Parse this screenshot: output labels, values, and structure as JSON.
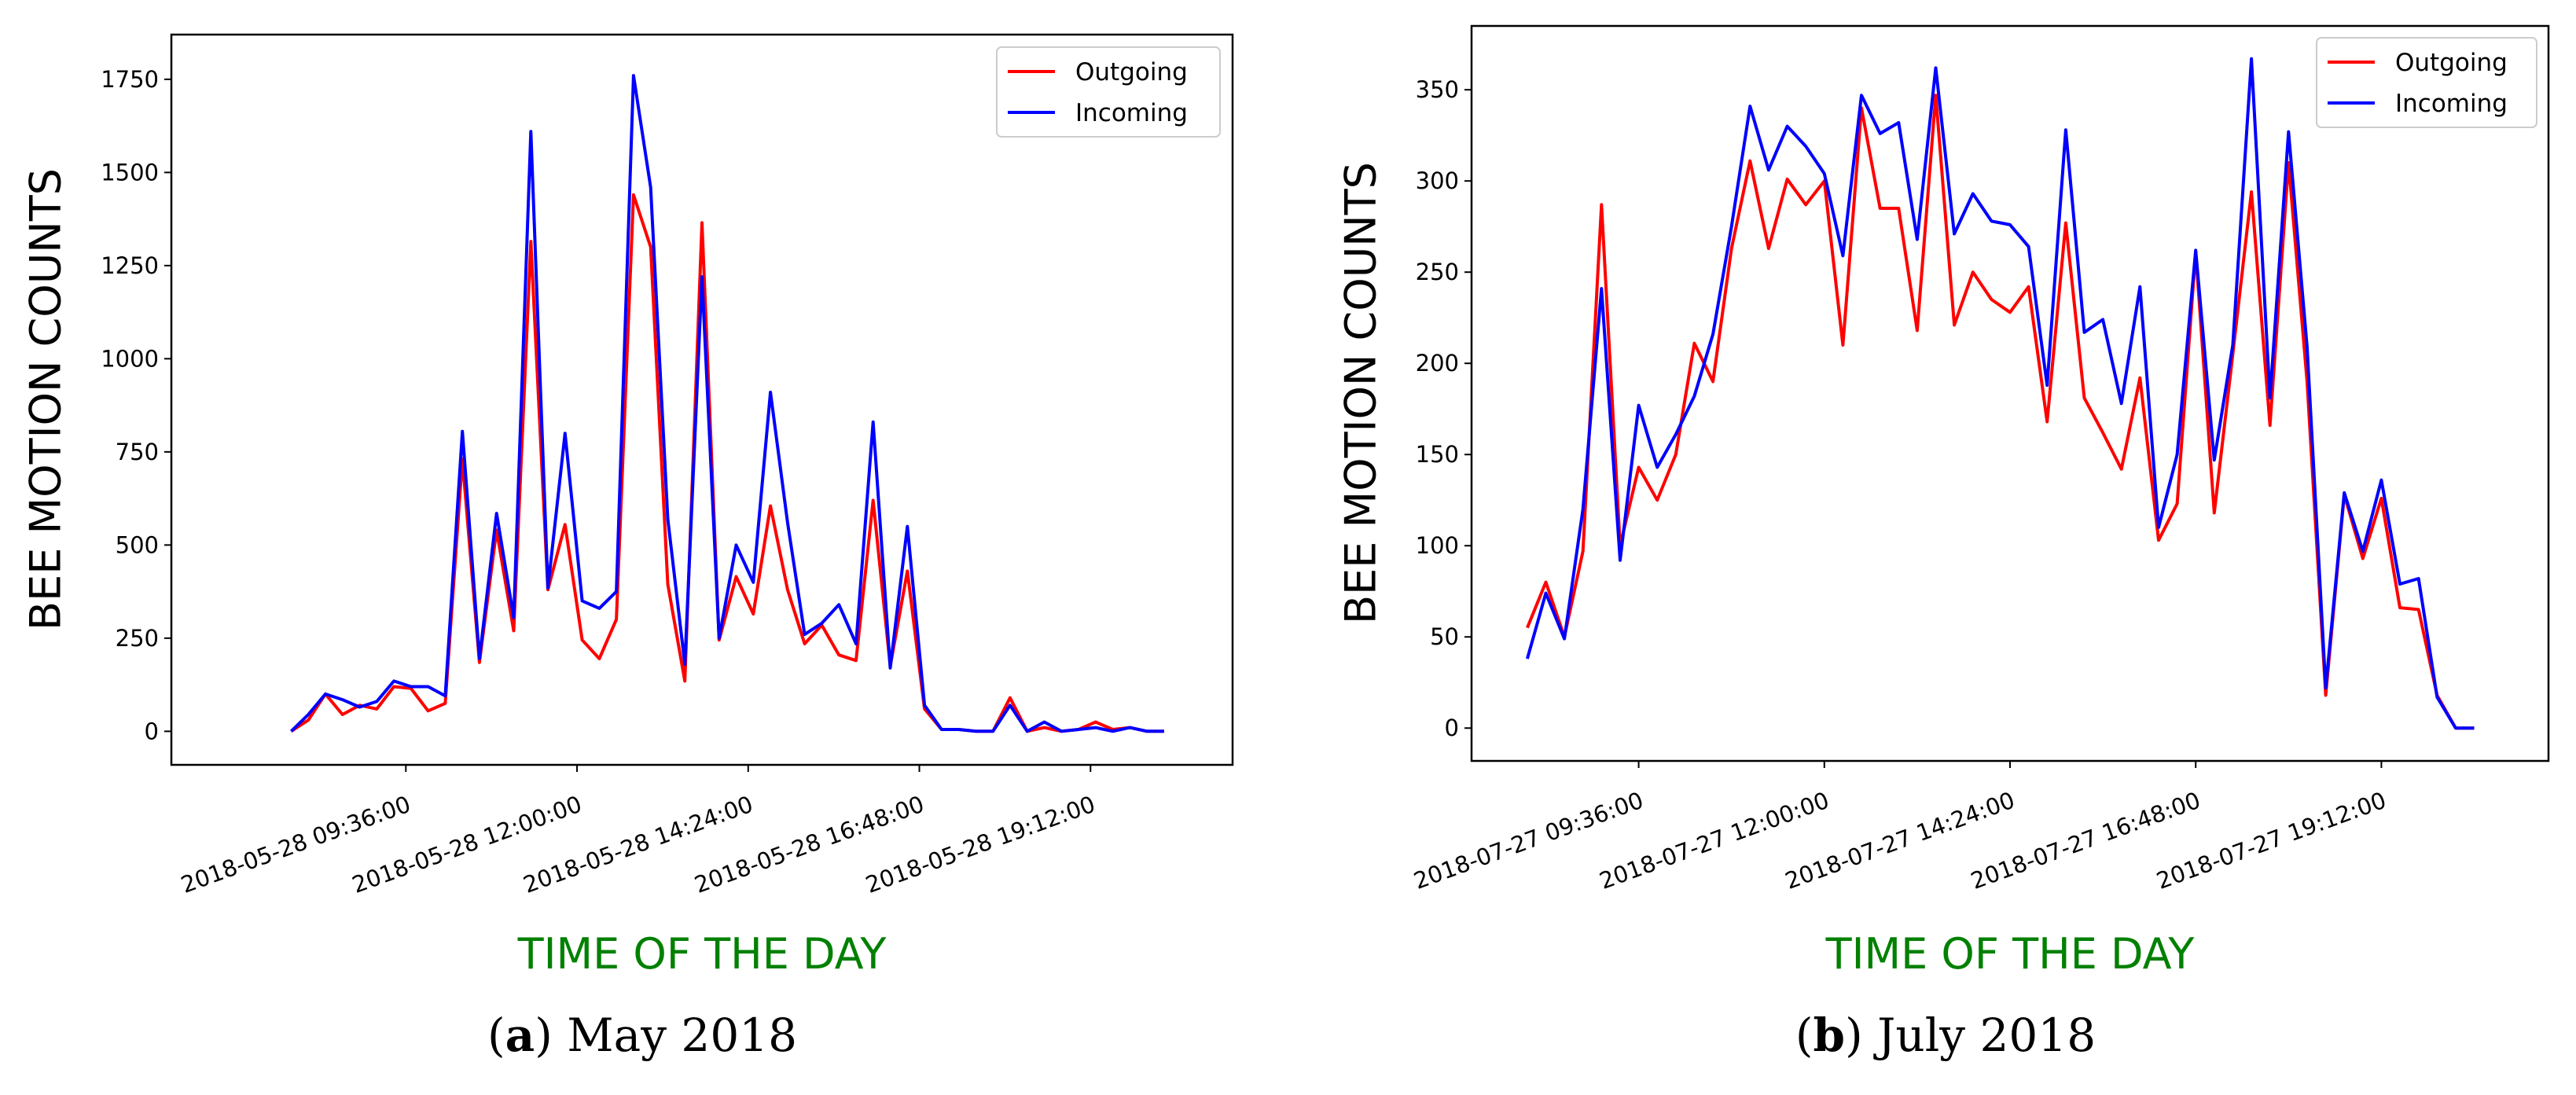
{
  "chart_data": [
    {
      "id": "a",
      "type": "line",
      "caption_letter": "a",
      "caption_text": "May 2018",
      "title": "",
      "xlabel": "TIME OF THE DAY",
      "ylabel": "BEE MOTION COUNTS",
      "ylim": [
        -90,
        1870
      ],
      "yticks": [
        0,
        250,
        500,
        750,
        1000,
        1250,
        1500,
        1750
      ],
      "xlim": [
        -7,
        55
      ],
      "xticks": [
        6.7,
        16.7,
        26.7,
        36.7,
        46.7
      ],
      "xtick_labels": [
        "2018-05-28 09:36:00",
        "2018-05-28 12:00:00",
        "2018-05-28 14:24:00",
        "2018-05-28 16:48:00",
        "2018-05-28 19:12:00"
      ],
      "legend": [
        "Outgoing",
        "Incoming"
      ],
      "legend_position": "top-right",
      "colors": {
        "Outgoing": "#ff0000",
        "Incoming": "#0000ff"
      },
      "series": [
        {
          "name": "Outgoing",
          "values": [
            0,
            30,
            100,
            45,
            70,
            60,
            120,
            115,
            55,
            75,
            730,
            185,
            540,
            270,
            1315,
            380,
            555,
            245,
            195,
            300,
            1440,
            1300,
            395,
            135,
            1365,
            245,
            415,
            315,
            605,
            380,
            235,
            285,
            205,
            190,
            620,
            175,
            430,
            60,
            5,
            5,
            0,
            0,
            90,
            0,
            10,
            0,
            5,
            25,
            5,
            10,
            0,
            0
          ]
        },
        {
          "name": "Incoming",
          "values": [
            0,
            45,
            100,
            85,
            65,
            80,
            135,
            120,
            120,
            95,
            805,
            195,
            585,
            305,
            1610,
            385,
            800,
            350,
            330,
            375,
            1760,
            1460,
            570,
            180,
            1220,
            250,
            500,
            400,
            910,
            560,
            260,
            290,
            340,
            235,
            830,
            170,
            550,
            70,
            5,
            5,
            0,
            0,
            70,
            0,
            25,
            0,
            5,
            10,
            0,
            10,
            0,
            0
          ]
        }
      ]
    },
    {
      "id": "b",
      "type": "line",
      "caption_letter": "b",
      "caption_text": "July 2018",
      "title": "",
      "xlabel": "TIME OF THE DAY",
      "ylabel": "BEE MOTION COUNTS",
      "ylim": [
        -18,
        385
      ],
      "yticks": [
        0,
        50,
        100,
        150,
        200,
        250,
        300,
        350
      ],
      "xlim": [
        -3,
        55
      ],
      "xticks": [
        6,
        16,
        26,
        36,
        46
      ],
      "xtick_labels": [
        "2018-07-27 09:36:00",
        "2018-07-27 12:00:00",
        "2018-07-27 14:24:00",
        "2018-07-27 16:48:00",
        "2018-07-27 19:12:00"
      ],
      "legend": [
        "Outgoing",
        "Incoming"
      ],
      "legend_position": "top-right",
      "colors": {
        "Outgoing": "#ff0000",
        "Incoming": "#0000ff"
      },
      "series": [
        {
          "name": "Outgoing",
          "values": [
            55,
            80,
            50,
            97,
            287,
            100,
            143,
            125,
            150,
            211,
            190,
            263,
            311,
            263,
            301,
            287,
            300,
            210,
            340,
            285,
            285,
            218,
            347,
            221,
            250,
            235,
            228,
            242,
            168,
            277,
            181,
            162,
            142,
            192,
            103,
            123,
            261,
            118,
            205,
            294,
            166,
            310,
            190,
            18,
            128,
            93,
            126,
            66,
            65,
            18,
            0,
            0
          ]
        },
        {
          "name": "Incoming",
          "values": [
            38,
            74,
            49,
            120,
            241,
            92,
            177,
            143,
            161,
            182,
            216,
            275,
            341,
            306,
            330,
            319,
            304,
            259,
            347,
            326,
            332,
            268,
            362,
            271,
            293,
            278,
            276,
            264,
            188,
            328,
            217,
            224,
            178,
            242,
            110,
            150,
            262,
            147,
            210,
            367,
            181,
            327,
            209,
            22,
            129,
            97,
            136,
            79,
            82,
            17,
            0,
            0
          ]
        }
      ]
    }
  ]
}
